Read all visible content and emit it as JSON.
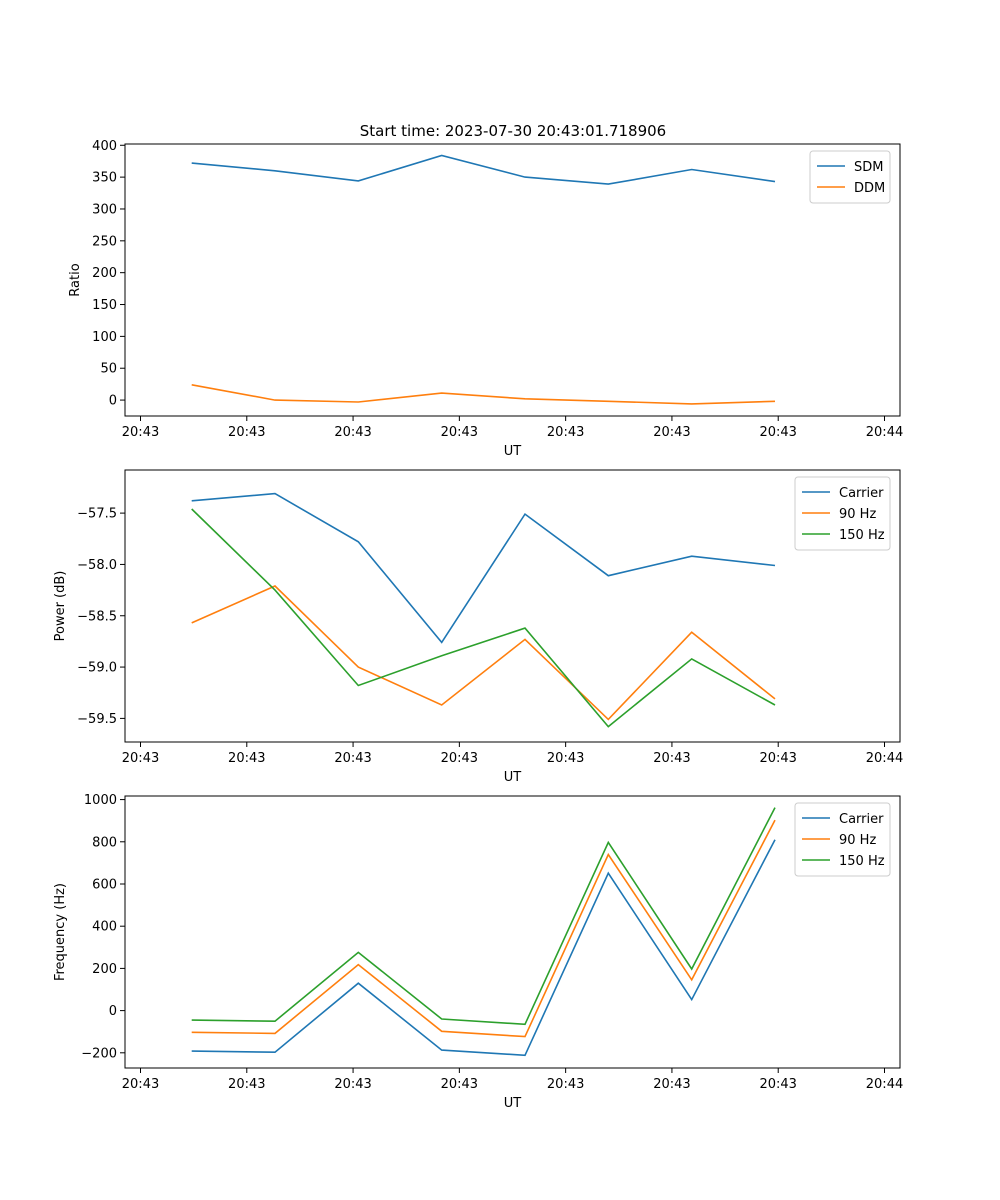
{
  "figure_title": "Start time: 2023-07-30 20:43:01.718906",
  "chart_data": [
    {
      "type": "line",
      "title": "Start time: 2023-07-30 20:43:01.718906",
      "xlabel": "UT",
      "ylabel": "Ratio",
      "x_tick_labels": [
        "20:43",
        "20:43",
        "20:43",
        "20:43",
        "20:43",
        "20:43",
        "20:43"
      ],
      "x_last_tick_label": "20:44",
      "x": [
        1,
        2,
        3,
        4,
        5,
        6,
        7,
        8
      ],
      "xlim": [
        0.2,
        9.5
      ],
      "ylim": [
        -25,
        402
      ],
      "yticks": [
        0,
        50,
        100,
        150,
        200,
        250,
        300,
        350,
        400
      ],
      "legend_position": "top-right",
      "series": [
        {
          "name": "SDM",
          "color": "#1f77b4",
          "values": [
            372,
            360,
            344,
            384,
            350,
            339,
            362,
            343
          ]
        },
        {
          "name": "DDM",
          "color": "#ff7f0e",
          "values": [
            24,
            0,
            -3,
            11,
            2,
            -2,
            -6,
            -2
          ]
        }
      ]
    },
    {
      "type": "line",
      "title": "",
      "xlabel": "UT",
      "ylabel": "Power (dB)",
      "x_tick_labels": [
        "20:43",
        "20:43",
        "20:43",
        "20:43",
        "20:43",
        "20:43",
        "20:43"
      ],
      "x_last_tick_label": "20:44",
      "x": [
        1,
        2,
        3,
        4,
        5,
        6,
        7,
        8
      ],
      "xlim": [
        0.2,
        9.5
      ],
      "ylim": [
        -59.73,
        -57.08
      ],
      "yticks": [
        -59.5,
        -59.0,
        -58.5,
        -58.0,
        -57.5
      ],
      "ytick_labels": [
        "−59.5",
        "−59.0",
        "−58.5",
        "−58.0",
        "−57.5"
      ],
      "legend_position": "top-right",
      "series": [
        {
          "name": "Carrier",
          "color": "#1f77b4",
          "values": [
            -57.38,
            -57.31,
            -57.78,
            -58.76,
            -57.51,
            -58.11,
            -57.92,
            -58.01
          ]
        },
        {
          "name": "90 Hz",
          "color": "#ff7f0e",
          "values": [
            -58.57,
            -58.21,
            -59.0,
            -59.37,
            -58.73,
            -59.51,
            -58.66,
            -59.31
          ]
        },
        {
          "name": "150 Hz",
          "color": "#2ca02c",
          "values": [
            -57.46,
            -58.25,
            -59.18,
            -58.89,
            -58.62,
            -59.58,
            -58.92,
            -59.37
          ]
        }
      ]
    },
    {
      "type": "line",
      "title": "",
      "xlabel": "UT",
      "ylabel": "Frequency (Hz)",
      "x_tick_labels": [
        "20:43",
        "20:43",
        "20:43",
        "20:43",
        "20:43",
        "20:43",
        "20:43"
      ],
      "x_last_tick_label": "20:44",
      "x": [
        1,
        2,
        3,
        4,
        5,
        6,
        7,
        8
      ],
      "xlim": [
        0.2,
        9.5
      ],
      "ylim": [
        -272,
        1017
      ],
      "yticks": [
        -200,
        0,
        200,
        400,
        600,
        800,
        1000
      ],
      "ytick_labels": [
        "−200",
        "0",
        "200",
        "400",
        "600",
        "800",
        "1000"
      ],
      "legend_position": "top-right",
      "series": [
        {
          "name": "Carrier",
          "color": "#1f77b4",
          "values": [
            -192,
            -197,
            130,
            -187,
            -212,
            651,
            52,
            810
          ]
        },
        {
          "name": "90 Hz",
          "color": "#ff7f0e",
          "values": [
            -103,
            -108,
            218,
            -98,
            -123,
            740,
            146,
            903
          ]
        },
        {
          "name": "150 Hz",
          "color": "#2ca02c",
          "values": [
            -45,
            -50,
            276,
            -40,
            -65,
            797,
            197,
            962
          ]
        }
      ]
    }
  ]
}
